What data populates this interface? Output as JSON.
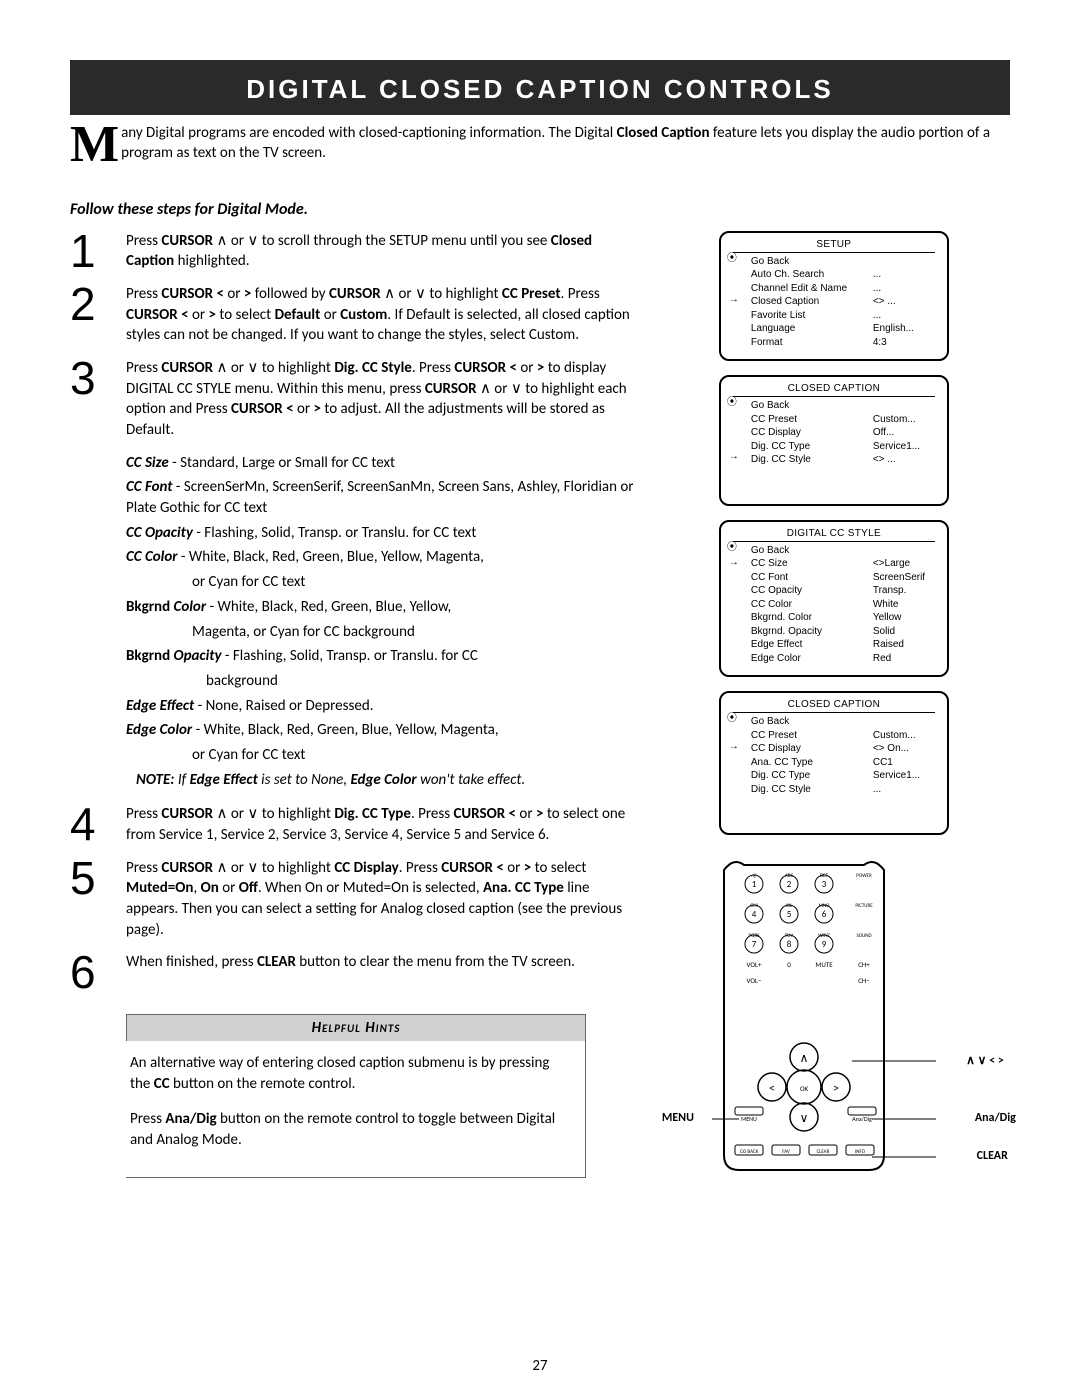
{
  "header": {
    "title": "DIGITAL CLOSED CAPTION CONTROLS"
  },
  "intro": {
    "dropcap": "M",
    "html": "any Digital programs are encoded with closed-captioning information.  The Digital <b>Closed Caption</b> feature lets you display the audio portion of a program as text on the TV screen."
  },
  "subhead": "Follow these steps for Digital Mode.",
  "steps": [
    {
      "n": "1",
      "html": "Press <b>CURSOR</b> ∧ or ∨ to scroll through the SETUP menu until you see <b>Closed Caption</b> highlighted."
    },
    {
      "n": "2",
      "html": "Press <b>CURSOR &lt;</b> or <b>&gt;</b> followed by <b>CURSOR</b> ∧ or ∨ to highlight <b>CC Preset</b>. Press <b>CURSOR &lt;</b> or <b>&gt;</b> to select <b>Default</b> or <b>Custom</b>. If Default is selected, all closed caption styles can not be changed. If you want to change the styles, select Custom."
    },
    {
      "n": "3",
      "html": "Press <b>CURSOR</b> ∧ or ∨ to highlight <b>Dig. CC Style</b>. Press <b>CURSOR &lt;</b> or <b>&gt;</b> to display DIGITAL CC STYLE menu. Within this menu, press <b>CURSOR</b> ∧ or ∨ to highlight each option and Press <b>CURSOR &lt;</b> or <b>&gt;</b> to adjust.  All the adjustments will be stored as Default."
    }
  ],
  "bullets": [
    {
      "html": "<b><i>CC Size</i></b> - Standard, Large or Small for CC text"
    },
    {
      "html": "<b><i>CC Font</i></b> - ScreenSerMn, ScreenSerif, ScreenSanMn, Screen Sans, Ashley, Floridian or Plate Gothic for CC text"
    },
    {
      "html": "<b><i>CC Opacity</i></b> - Flashing, Solid, Transp. or Translu. for CC text"
    },
    {
      "html": "<b><i>CC Color</i></b> - White, Black, Red, Green, Blue, Yellow, Magenta,"
    },
    {
      "html": "or Cyan for CC text",
      "indent": "indent1"
    },
    {
      "html": "<b>Bkgrnd <i>Color</i></b> - White, Black, Red, Green, Blue, Yellow,"
    },
    {
      "html": "Magenta, or Cyan for CC background",
      "indent": "indent1"
    },
    {
      "html": "<b>Bkgrnd <i>Opacity</i></b> - Flashing, Solid, Transp. or Translu. for CC"
    },
    {
      "html": "background",
      "indent": "indent2"
    },
    {
      "html": "<b><i>Edge Effect</i></b> - None, Raised or Depressed."
    },
    {
      "html": "<b><i>Edge Color</i></b> - White, Black, Red, Green, Blue, Yellow, Magenta,"
    },
    {
      "html": "or Cyan for CC text",
      "indent": "indent1"
    },
    {
      "html": "<i><b>NOTE:</b></i>  If <b>Edge Effect</b> is set to None, <b>Edge Color</b> won't take effect.",
      "indent": "note-line"
    }
  ],
  "steps2": [
    {
      "n": "4",
      "html": "Press <b>CURSOR</b> ∧ or ∨ to highlight <b>Dig. CC Type</b>. Press <b>CURSOR &lt;</b> or <b>&gt;</b> to select one from Service 1, Service 2, Service 3, Service 4, Service 5 and Service 6."
    },
    {
      "n": "5",
      "html": "Press <b>CURSOR</b> ∧ or ∨ to highlight <b>CC Display</b>. Press <b>CURSOR &lt;</b> or <b>&gt;</b> to select <b>Muted=On</b>, <b>On</b> or <b>Off</b>.  When On or Muted=On is selected, <b>Ana. CC Type</b> line appears. Then you can select a setting for Analog closed caption (see the previous page)."
    },
    {
      "n": "6",
      "html": "When finished, press <b>CLEAR</b> button to clear the menu from the TV screen."
    }
  ],
  "hints": {
    "title": "Helpful Hints",
    "paras": [
      "An alternative way of entering closed caption submenu is by pressing the <b>CC</b> button on the remote control.",
      "Press <b>Ana/Dig</b> button on the remote control to toggle between Digital and Analog Mode."
    ]
  },
  "menus": {
    "setup": {
      "title": "SETUP",
      "arrow_row": 3,
      "rows": [
        {
          "lbl": "Go Back",
          "val": ""
        },
        {
          "lbl": "Auto Ch. Search",
          "val": "..."
        },
        {
          "lbl": "Channel Edit & Name",
          "val": "..."
        },
        {
          "lbl": "Closed Caption",
          "val": "<> ..."
        },
        {
          "lbl": "Favorite List",
          "val": "..."
        },
        {
          "lbl": "Language",
          "val": "English..."
        },
        {
          "lbl": "Format",
          "val": "4:3"
        }
      ]
    },
    "cc1": {
      "title": "CLOSED CAPTION",
      "arrow_row": 4,
      "rows": [
        {
          "lbl": "Go Back",
          "val": ""
        },
        {
          "lbl": "CC Preset",
          "val": "Custom..."
        },
        {
          "lbl": "CC Display",
          "val": "Off..."
        },
        {
          "lbl": "Dig. CC Type",
          "val": "Service1..."
        },
        {
          "lbl": "Dig. CC Style",
          "val": "<> ..."
        }
      ]
    },
    "style": {
      "title": "DIGITAL CC STYLE",
      "arrow_row": 1,
      "rows": [
        {
          "lbl": "Go Back",
          "val": ""
        },
        {
          "lbl": "CC Size",
          "val": "<>Large"
        },
        {
          "lbl": "CC Font",
          "val": "ScreenSerif"
        },
        {
          "lbl": "CC Opacity",
          "val": "Transp."
        },
        {
          "lbl": "CC Color",
          "val": "White"
        },
        {
          "lbl": "Bkgrnd. Color",
          "val": "Yellow"
        },
        {
          "lbl": "Bkgrnd. Opacity",
          "val": "Solid"
        },
        {
          "lbl": "Edge Effect",
          "val": "Raised"
        },
        {
          "lbl": "Edge Color",
          "val": "Red"
        }
      ]
    },
    "cc2": {
      "title": "CLOSED CAPTION",
      "arrow_row": 2,
      "rows": [
        {
          "lbl": "Go Back",
          "val": ""
        },
        {
          "lbl": "CC Preset",
          "val": "Custom..."
        },
        {
          "lbl": "CC Display",
          "val": "<> On..."
        },
        {
          "lbl": "Ana. CC Type",
          "val": "CC1"
        },
        {
          "lbl": "Dig. CC Type",
          "val": "Service1..."
        },
        {
          "lbl": "Dig. CC Style",
          "val": "..."
        }
      ]
    }
  },
  "remote": {
    "labels": {
      "arrows": "∧  ∨  <  >",
      "menu": "MENU",
      "anadig": "Ana/Dig",
      "clear": "CLEAR"
    },
    "keypad": [
      [
        ".@",
        "ABC",
        "DEF",
        "POWER"
      ],
      [
        "1",
        "2",
        "3",
        ""
      ],
      [
        "GHI",
        "JKL",
        "MNO",
        "PICTURE"
      ],
      [
        "4",
        "5",
        "6",
        ""
      ],
      [
        "PQRS",
        "TUV",
        "WXYZ",
        "SOUND"
      ],
      [
        "7",
        "8",
        "9",
        ""
      ],
      [
        "VOL+",
        "0",
        "MUTE",
        "CH+"
      ],
      [
        "VOL−",
        "",
        "",
        "CH−"
      ]
    ],
    "bottom": [
      "MENU",
      "",
      "Ana/Dig"
    ],
    "bottom2": [
      "GO BACK",
      "FAV",
      "CLEAR",
      "INFO"
    ]
  },
  "pagenum": "27"
}
